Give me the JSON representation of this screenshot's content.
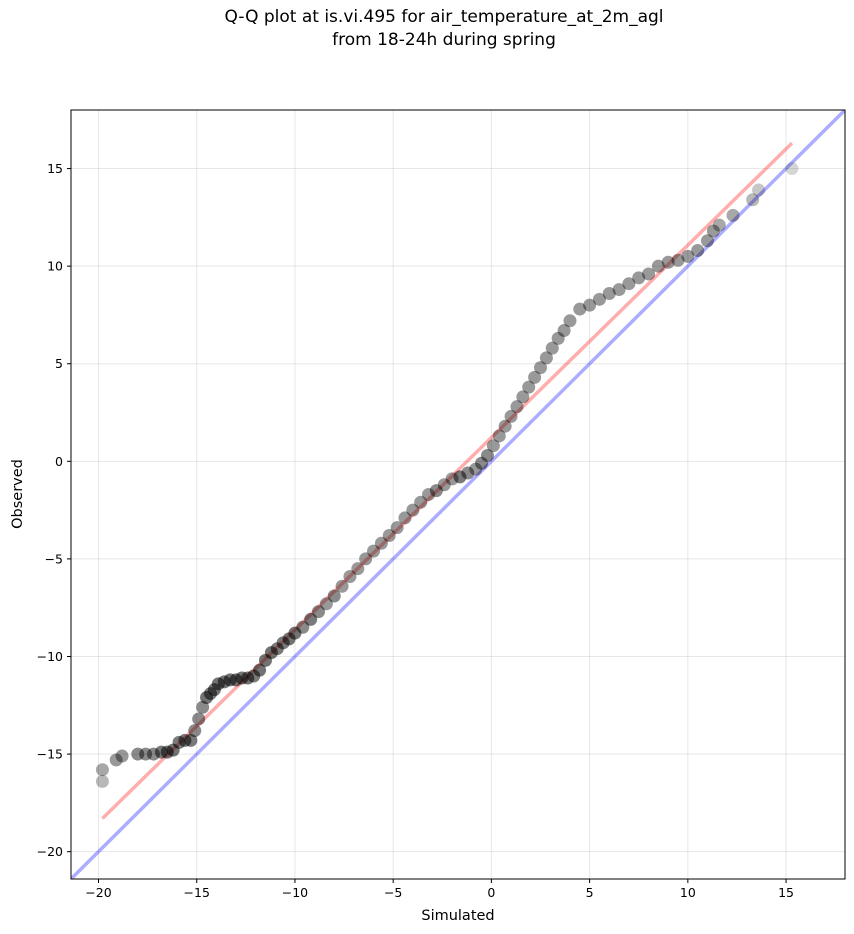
{
  "chart_data": {
    "type": "scatter",
    "title": [
      "Q-Q plot at is.vi.495 for air_temperature_at_2m_agl",
      "from 18-24h during spring"
    ],
    "xlabel": "Simulated",
    "ylabel": "Observed",
    "xlim": [
      -21.4,
      18.0
    ],
    "ylim": [
      -21.4,
      18.0
    ],
    "xticks": [
      -20,
      -15,
      -10,
      -5,
      0,
      5,
      10,
      15
    ],
    "yticks": [
      -20,
      -15,
      -10,
      -5,
      0,
      5,
      10,
      15
    ],
    "xtick_labels": [
      "−20",
      "−15",
      "−10",
      "−5",
      "0",
      "5",
      "10",
      "15"
    ],
    "ytick_labels": [
      "−20",
      "−15",
      "−10",
      "−5",
      "0",
      "5",
      "10",
      "15"
    ],
    "grid": true,
    "colors": {
      "points": "#000000",
      "fit_line": "#ff0000",
      "identity_line": "#0000ff"
    },
    "quantile_points": {
      "x": [
        -19.8,
        -19.8,
        -19.1,
        -18.8,
        -18.0,
        -17.6,
        -17.2,
        -16.8,
        -16.5,
        -16.2,
        -15.9,
        -15.6,
        -15.3,
        -15.1,
        -14.9,
        -14.7,
        -14.5,
        -14.3,
        -14.1,
        -13.9,
        -13.6,
        -13.3,
        -13.0,
        -12.7,
        -12.4,
        -12.1,
        -11.8,
        -11.5,
        -11.2,
        -10.9,
        -10.6,
        -10.3,
        -10.0,
        -9.6,
        -9.2,
        -8.8,
        -8.4,
        -8.0,
        -7.6,
        -7.2,
        -6.8,
        -6.4,
        -6.0,
        -5.6,
        -5.2,
        -4.8,
        -4.4,
        -4.0,
        -3.6,
        -3.2,
        -2.8,
        -2.4,
        -2.0,
        -1.6,
        -1.2,
        -0.8,
        -0.5,
        -0.2,
        0.1,
        0.4,
        0.7,
        1.0,
        1.3,
        1.6,
        1.9,
        2.2,
        2.5,
        2.8,
        3.1,
        3.4,
        3.7,
        4.0,
        4.5,
        5.0,
        5.5,
        6.0,
        6.5,
        7.0,
        7.5,
        8.0,
        8.5,
        9.0,
        9.5,
        10.0,
        10.5,
        11.0,
        11.3,
        11.6,
        12.3,
        13.3,
        13.6,
        15.3
      ],
      "y": [
        -16.4,
        -15.8,
        -15.3,
        -15.1,
        -15.0,
        -15.0,
        -15.0,
        -14.9,
        -14.9,
        -14.8,
        -14.4,
        -14.3,
        -14.3,
        -13.8,
        -13.2,
        -12.6,
        -12.1,
        -11.9,
        -11.7,
        -11.4,
        -11.3,
        -11.2,
        -11.2,
        -11.1,
        -11.1,
        -11.0,
        -10.7,
        -10.2,
        -9.8,
        -9.6,
        -9.3,
        -9.1,
        -8.8,
        -8.5,
        -8.1,
        -7.7,
        -7.3,
        -6.9,
        -6.4,
        -5.9,
        -5.5,
        -5.0,
        -4.6,
        -4.2,
        -3.8,
        -3.4,
        -2.9,
        -2.5,
        -2.1,
        -1.7,
        -1.5,
        -1.2,
        -0.9,
        -0.8,
        -0.6,
        -0.4,
        -0.1,
        0.3,
        0.8,
        1.3,
        1.8,
        2.3,
        2.8,
        3.3,
        3.8,
        4.3,
        4.8,
        5.3,
        5.8,
        6.3,
        6.7,
        7.2,
        7.8,
        8.0,
        8.3,
        8.6,
        8.8,
        9.1,
        9.4,
        9.6,
        10.0,
        10.2,
        10.3,
        10.5,
        10.8,
        11.3,
        11.8,
        12.1,
        12.6,
        13.4,
        13.9,
        15.0
      ]
    },
    "fit_line": {
      "x": [
        -19.8,
        15.3
      ],
      "y": [
        -18.3,
        16.3
      ]
    },
    "identity_line": {
      "x": [
        -21.4,
        18.0
      ],
      "y": [
        -21.4,
        18.0
      ]
    }
  }
}
